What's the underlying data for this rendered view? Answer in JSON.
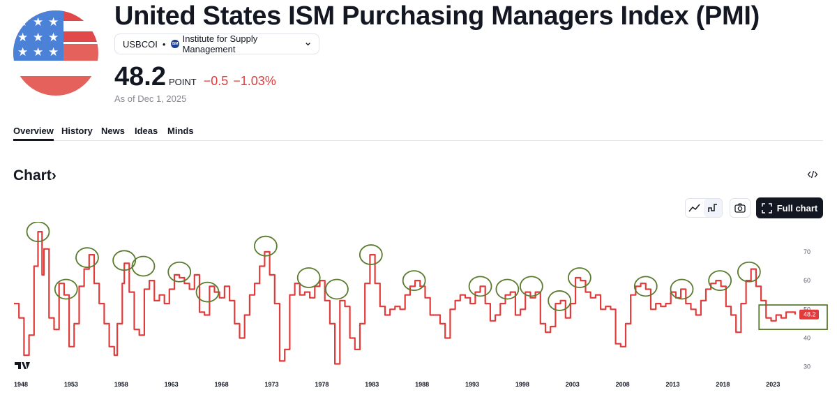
{
  "header": {
    "title": "United States ISM Purchasing Managers Index (PMI)",
    "symbol": "USBCOI",
    "separator": "•",
    "source_logo_text": "ISM",
    "source": "Institute for Supply Management",
    "price": "48.2",
    "unit": "POINT",
    "change": "−0.5",
    "change_pct": "−1.03%",
    "as_of": "As of Dec 1, 2025"
  },
  "tabs": [
    "Overview",
    "History",
    "News",
    "Ideas",
    "Minds"
  ],
  "section": {
    "heading": "Chart",
    "heading_arrow": "›"
  },
  "toolbar": {
    "full_chart_label": "Full chart"
  },
  "colors": {
    "series": "#e03c3c",
    "annotation": "#5a7a2e",
    "text": "#131722",
    "muted": "#868993",
    "down": "#e03c3c"
  },
  "chart_data": {
    "type": "line",
    "title": "United States ISM Purchasing Managers Index (PMI)",
    "x_range": [
      1948,
      2025.9
    ],
    "ylim": [
      27,
      78
    ],
    "x_ticks": [
      "1948",
      "1953",
      "1958",
      "1963",
      "1968",
      "1973",
      "1978",
      "1983",
      "1988",
      "1993",
      "1998",
      "2003",
      "2008",
      "2013",
      "2018",
      "2023"
    ],
    "y_ticks": [
      "30",
      "40",
      "50",
      "60",
      "70"
    ],
    "last_value_label": "48.2",
    "series": [
      {
        "name": "USBCOI",
        "x": [
          1948,
          1948.5,
          1949,
          1949.5,
          1950,
          1950.4,
          1950.8,
          1951,
          1951.5,
          1952,
          1952.5,
          1953,
          1953.5,
          1954,
          1954.5,
          1955,
          1955.5,
          1956,
          1956.5,
          1957,
          1957.5,
          1958,
          1958.3,
          1958.8,
          1959,
          1959.5,
          1960,
          1960.5,
          1961,
          1961.5,
          1962,
          1962.5,
          1963,
          1963.5,
          1964,
          1964.5,
          1965,
          1965.5,
          1966,
          1966.5,
          1967,
          1967.5,
          1968,
          1968.5,
          1969,
          1969.5,
          1970,
          1970.5,
          1971,
          1971.5,
          1972,
          1972.5,
          1973,
          1973.5,
          1974,
          1974.5,
          1975,
          1975.5,
          1976,
          1976.5,
          1977,
          1977.5,
          1978,
          1978.5,
          1979,
          1979.5,
          1980,
          1980.5,
          1981,
          1981.5,
          1982,
          1982.5,
          1983,
          1983.5,
          1984,
          1984.5,
          1985,
          1985.5,
          1986,
          1986.5,
          1987,
          1987.5,
          1988,
          1988.5,
          1989,
          1989.5,
          1990,
          1990.5,
          1991,
          1991.5,
          1992,
          1992.5,
          1993,
          1993.5,
          1994,
          1994.5,
          1995,
          1995.5,
          1996,
          1996.5,
          1997,
          1997.5,
          1998,
          1998.5,
          1999,
          1999.5,
          2000,
          2000.5,
          2001,
          2001.5,
          2002,
          2002.5,
          2003,
          2003.5,
          2004,
          2004.5,
          2005,
          2005.5,
          2006,
          2006.5,
          2007,
          2007.5,
          2008,
          2008.5,
          2009,
          2009.5,
          2010,
          2010.5,
          2011,
          2011.5,
          2012,
          2012.5,
          2013,
          2013.5,
          2014,
          2014.5,
          2015,
          2015.5,
          2016,
          2016.5,
          2017,
          2017.5,
          2018,
          2018.5,
          2019,
          2019.5,
          2020,
          2020.5,
          2021,
          2021.5,
          2022,
          2022.5,
          2023,
          2023.5,
          2024,
          2024.5,
          2025,
          2025.5,
          2025.9
        ],
        "values": [
          52,
          47,
          34,
          41,
          65,
          77,
          62,
          71,
          47,
          43,
          59,
          55,
          37,
          45,
          58,
          64,
          69,
          59,
          52,
          45,
          37,
          34,
          45,
          59,
          66,
          56,
          43,
          41,
          57,
          60,
          53,
          55,
          52,
          57,
          62,
          61,
          59,
          57,
          62,
          49,
          48,
          58,
          56,
          54,
          58,
          53,
          45,
          40,
          48,
          55,
          59,
          65,
          70,
          62,
          52,
          32,
          36,
          55,
          59,
          55,
          56,
          54,
          58,
          60,
          53,
          45,
          31,
          53,
          51,
          40,
          36,
          45,
          59,
          69,
          59,
          51,
          48,
          50,
          51,
          50,
          55,
          58,
          60,
          58,
          54,
          48,
          48,
          45,
          40,
          50,
          53,
          55,
          54,
          52,
          56,
          58,
          52,
          46,
          48,
          52,
          55,
          56,
          48,
          50,
          56,
          54,
          56,
          45,
          42,
          44,
          52,
          53,
          47,
          52,
          61,
          60,
          56,
          54,
          55,
          50,
          51,
          50,
          38,
          37,
          45,
          55,
          58,
          59,
          57,
          50,
          52,
          51,
          52,
          56,
          54,
          57,
          52,
          50,
          48,
          53,
          57,
          59,
          60,
          58,
          51,
          48,
          42,
          52,
          60,
          64,
          58,
          53,
          47,
          46,
          48,
          47,
          49,
          49,
          48.2
        ]
      }
    ],
    "annotations": "green circles around cycle peaks; green rectangle around latest values"
  }
}
